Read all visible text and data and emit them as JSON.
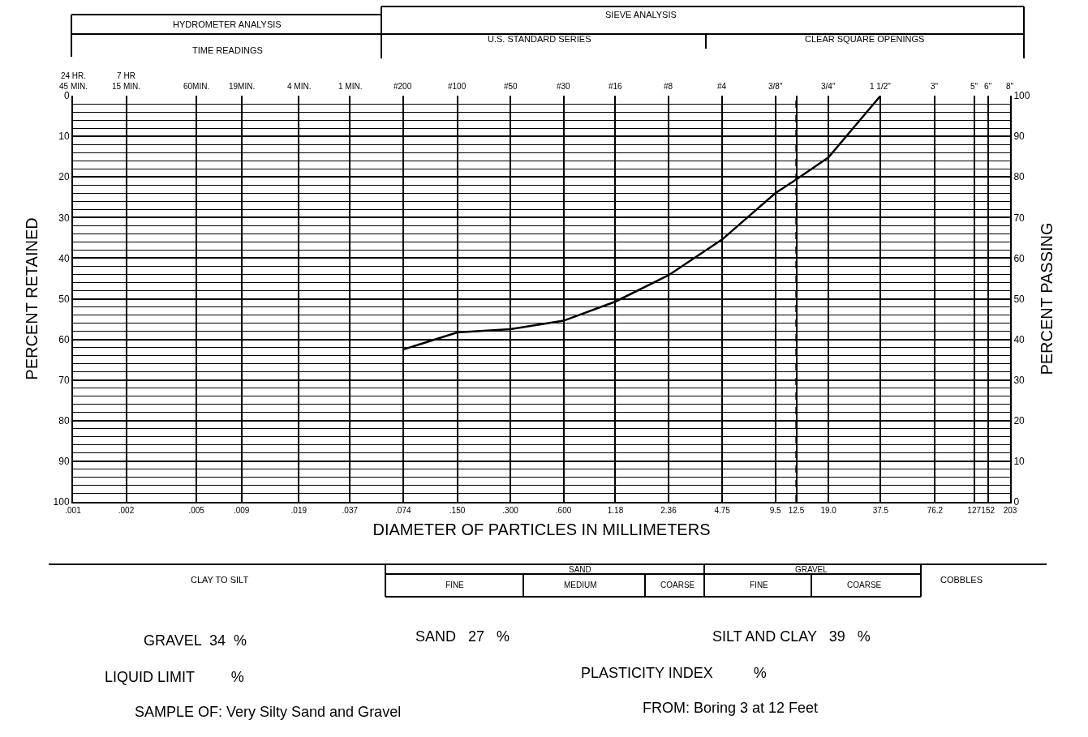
{
  "chart_data": {
    "type": "line",
    "xlabel": "DIAMETER OF PARTICLES IN MILLIMETERS",
    "ylabel": "PERCENT RETAINED",
    "y2label": "PERCENT PASSING",
    "log": "x",
    "grid": true,
    "marker": "none",
    "line_style": "solid",
    "xlim": [
      0.001,
      203
    ],
    "xticks": [
      {
        "value": 0.001,
        "label": ".001"
      },
      {
        "value": 0.002,
        "label": ".002"
      },
      {
        "value": 0.005,
        "label": ".005"
      },
      {
        "value": 0.009,
        "label": ".009"
      },
      {
        "value": 0.019,
        "label": ".019"
      },
      {
        "value": 0.037,
        "label": ".037"
      },
      {
        "value": 0.074,
        "label": ".074"
      },
      {
        "value": 0.15,
        "label": ".150"
      },
      {
        "value": 0.3,
        "label": ".300"
      },
      {
        "value": 0.6,
        "label": ".600"
      },
      1.18,
      2.36,
      4.75,
      9.5,
      12.5,
      {
        "value": 19,
        "label": "19.0"
      },
      37.5,
      76.2,
      127,
      152,
      203
    ],
    "ylim": [
      100,
      0
    ],
    "yticks": [
      0,
      10,
      20,
      30,
      40,
      50,
      60,
      70,
      80,
      90,
      100
    ],
    "y2lim": [
      0,
      100
    ],
    "y2ticks": [
      0,
      {
        "value": 2,
        "label": null
      },
      {
        "value": 4,
        "label": null
      },
      {
        "value": 6,
        "label": null
      },
      {
        "value": 8,
        "label": null
      },
      10,
      {
        "value": 12,
        "label": null
      },
      {
        "value": 14,
        "label": null
      },
      {
        "value": 16,
        "label": null
      },
      {
        "value": 18,
        "label": null
      },
      20,
      {
        "value": 22,
        "label": null
      },
      {
        "value": 24,
        "label": null
      },
      {
        "value": 26,
        "label": null
      },
      {
        "value": 28,
        "label": null
      },
      30,
      {
        "value": 32,
        "label": null
      },
      {
        "value": 34,
        "label": null
      },
      {
        "value": 36,
        "label": null
      },
      {
        "value": 38,
        "label": null
      },
      40,
      {
        "value": 42,
        "label": null
      },
      {
        "value": 44,
        "label": null
      },
      {
        "value": 46,
        "label": null
      },
      {
        "value": 48,
        "label": null
      },
      50,
      {
        "value": 52,
        "label": null
      },
      {
        "value": 54,
        "label": null
      },
      {
        "value": 56,
        "label": null
      },
      {
        "value": 58,
        "label": null
      },
      60,
      {
        "value": 62,
        "label": null
      },
      {
        "value": 64,
        "label": null
      },
      {
        "value": 66,
        "label": null
      },
      {
        "value": 68,
        "label": null
      },
      70,
      {
        "value": 72,
        "label": null
      },
      {
        "value": 74,
        "label": null
      },
      {
        "value": 76,
        "label": null
      },
      {
        "value": 78,
        "label": null
      },
      80,
      {
        "value": 82,
        "label": null
      },
      {
        "value": 84,
        "label": null
      },
      {
        "value": 86,
        "label": null
      },
      {
        "value": 88,
        "label": null
      },
      90,
      {
        "value": 92,
        "label": null
      },
      {
        "value": 94,
        "label": null
      },
      {
        "value": 96,
        "label": null
      },
      {
        "value": 98,
        "label": null
      },
      100
    ],
    "x": [
      0.074,
      0.15,
      0.3,
      0.6,
      1.18,
      2.36,
      4.75,
      9.5,
      12.5,
      19,
      37.5
    ],
    "series": [
      {
        "color": "#000000",
        "axis": "y2",
        "values": [
          37.5,
          41.7,
          42.5,
          44.6,
          49.3,
          55.8,
          64.6,
          76,
          79.4,
          84.8,
          100
        ]
      }
    ],
    "ref_lines": [
      {
        "axis": "x",
        "value": 12.5,
        "color": "#000000",
        "line_style": "dashed"
      }
    ],
    "annotations": [
      "HYDROMETER ANALYSIS",
      "TIME READINGS",
      "SIEVE ANALYSIS",
      "U.S. STANDARD SERIES",
      "CLEAR SQUARE OPENINGS",
      "CLAY TO SILT",
      "SAND",
      "FINE",
      "MEDIUM",
      "COARSE",
      "GRAVEL",
      "FINE",
      "COARSE",
      "COBBLES",
      "GRAVEL  34  %",
      "SAND   27   %",
      "SILT AND CLAY   39   %",
      "LIQUID LIMIT         %",
      "PLASTICITY INDEX          %",
      "SAMPLE OF: Very Silty Sand and Gravel",
      "FROM: Boring 3 at 12 Feet",
      "24 HR.\n45 MIN.",
      "7 HR\n15 MIN.",
      "60MIN.",
      "19MIN.",
      "4 MIN.",
      "1 MIN.",
      "#200",
      "#100",
      "#50",
      "#30",
      "#16",
      "#8",
      "#4",
      "3/8\"",
      "3/4\"",
      "1 1/2\"",
      "3\"",
      "5\"",
      "6\"",
      "8\""
    ]
  }
}
